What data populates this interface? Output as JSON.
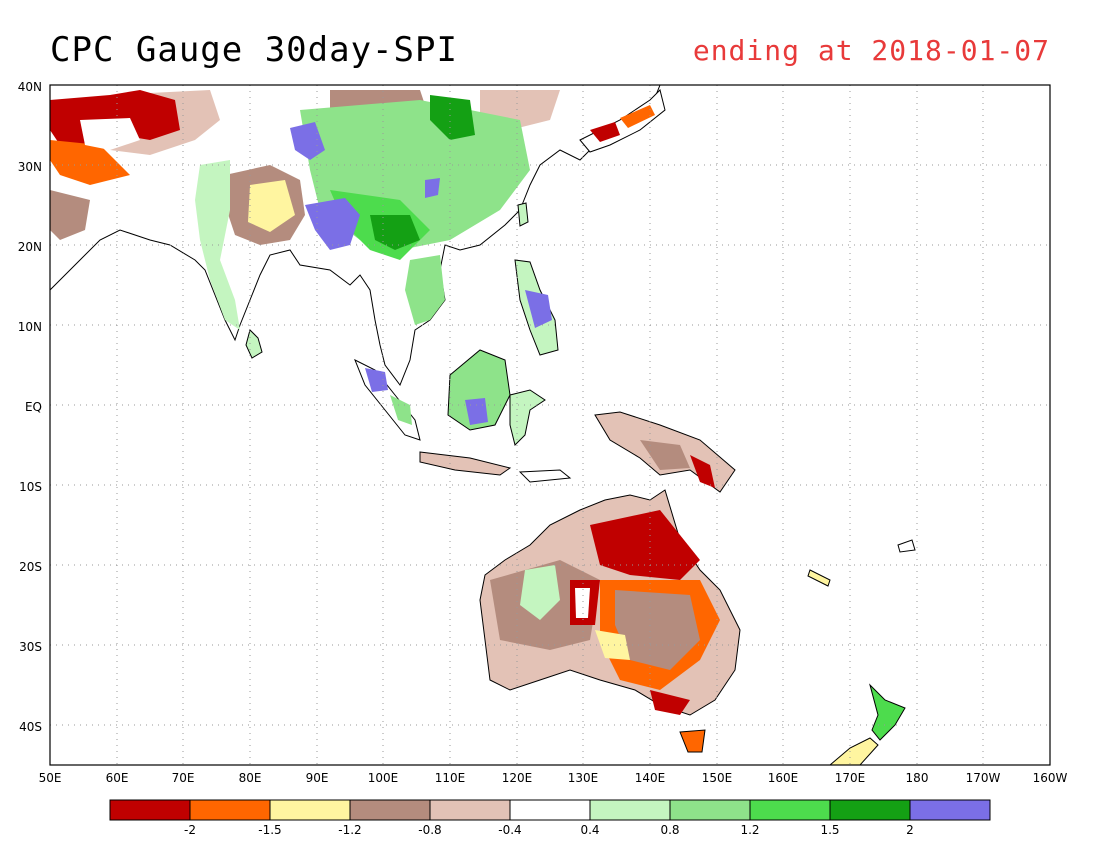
{
  "title": "CPC Gauge 30day-SPI",
  "subtitle": "ending at 2018-01-07",
  "lat_labels": [
    "40N",
    "30N",
    "20N",
    "10N",
    "EQ",
    "10S",
    "20S",
    "30S",
    "40S"
  ],
  "lon_labels": [
    "50E",
    "60E",
    "70E",
    "80E",
    "90E",
    "100E",
    "110E",
    "120E",
    "130E",
    "140E",
    "150E",
    "160E",
    "170E",
    "180",
    "170W",
    "160W"
  ],
  "colorbar": {
    "colors": [
      "#c00000",
      "#ff6600",
      "#fff5a0",
      "#b48c7e",
      "#e3c2b6",
      "#ffffff",
      "#c4f5c0",
      "#8ee38a",
      "#4ddc4d",
      "#14a014",
      "#7b6fe6"
    ],
    "labels": [
      "-2",
      "-1.5",
      "-1.2",
      "-0.8",
      "-0.4",
      "0.4",
      "0.8",
      "1.2",
      "1.5",
      "2"
    ]
  }
}
